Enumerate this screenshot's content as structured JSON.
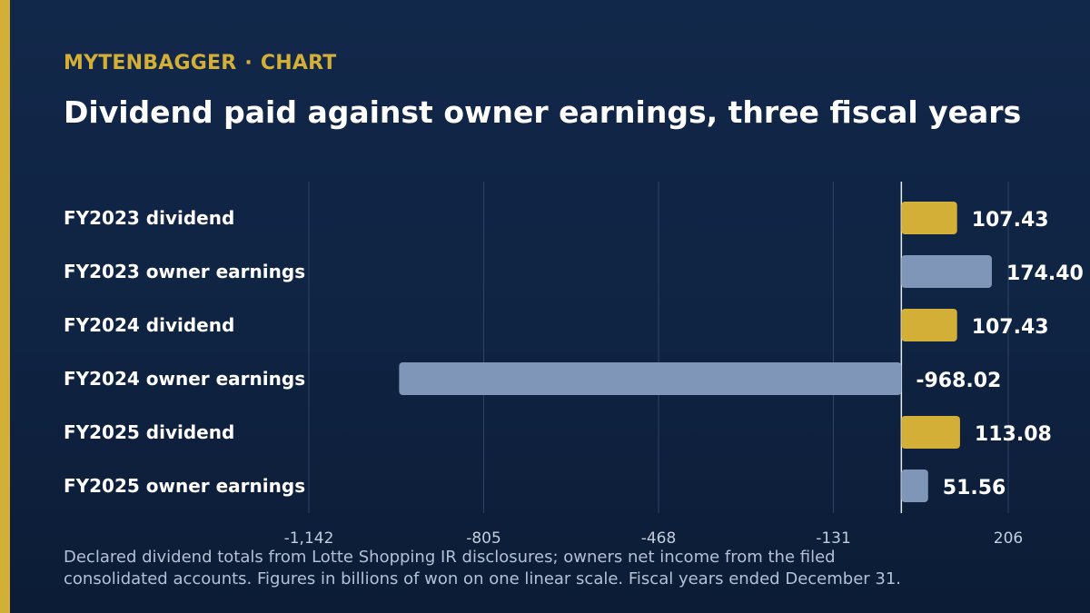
{
  "header": {
    "brand": "MYTENBAGGER",
    "separator": "·",
    "section": "CHART"
  },
  "footer": {
    "note_line1": "Declared dividend totals from Lotte Shopping IR disclosures; owners net income from the filed",
    "note_line2": "consolidated accounts. Figures in billions of won on one linear scale. Fiscal years ended December 31."
  },
  "colors": {
    "accent": "#d4af37",
    "dividend_bar": "#d4af37",
    "earnings_bar": "#7f96b8",
    "background": "#10244a"
  },
  "chart_data": {
    "type": "bar",
    "orientation": "horizontal",
    "title": "Dividend paid against owner earnings, three fiscal years",
    "categories": [
      "FY2023 dividend",
      "FY2023 owner earnings",
      "FY2024 dividend",
      "FY2024 owner earnings",
      "FY2025 dividend",
      "FY2025 owner earnings"
    ],
    "values": [
      107.43,
      174.4,
      107.43,
      -968.02,
      113.08,
      51.56
    ],
    "value_labels": [
      "107.43",
      "174.40",
      "107.43",
      "-968.02",
      "113.08",
      "51.56"
    ],
    "kinds": [
      "dividend",
      "earnings",
      "dividend",
      "earnings",
      "dividend",
      "earnings"
    ],
    "xlim": [
      -1142,
      206
    ],
    "x_ticks": [
      -1142,
      -805,
      -468,
      -131,
      206
    ],
    "x_tick_labels": [
      "-1,142",
      "-805",
      "-468",
      "-131",
      "206"
    ],
    "grid": true
  }
}
